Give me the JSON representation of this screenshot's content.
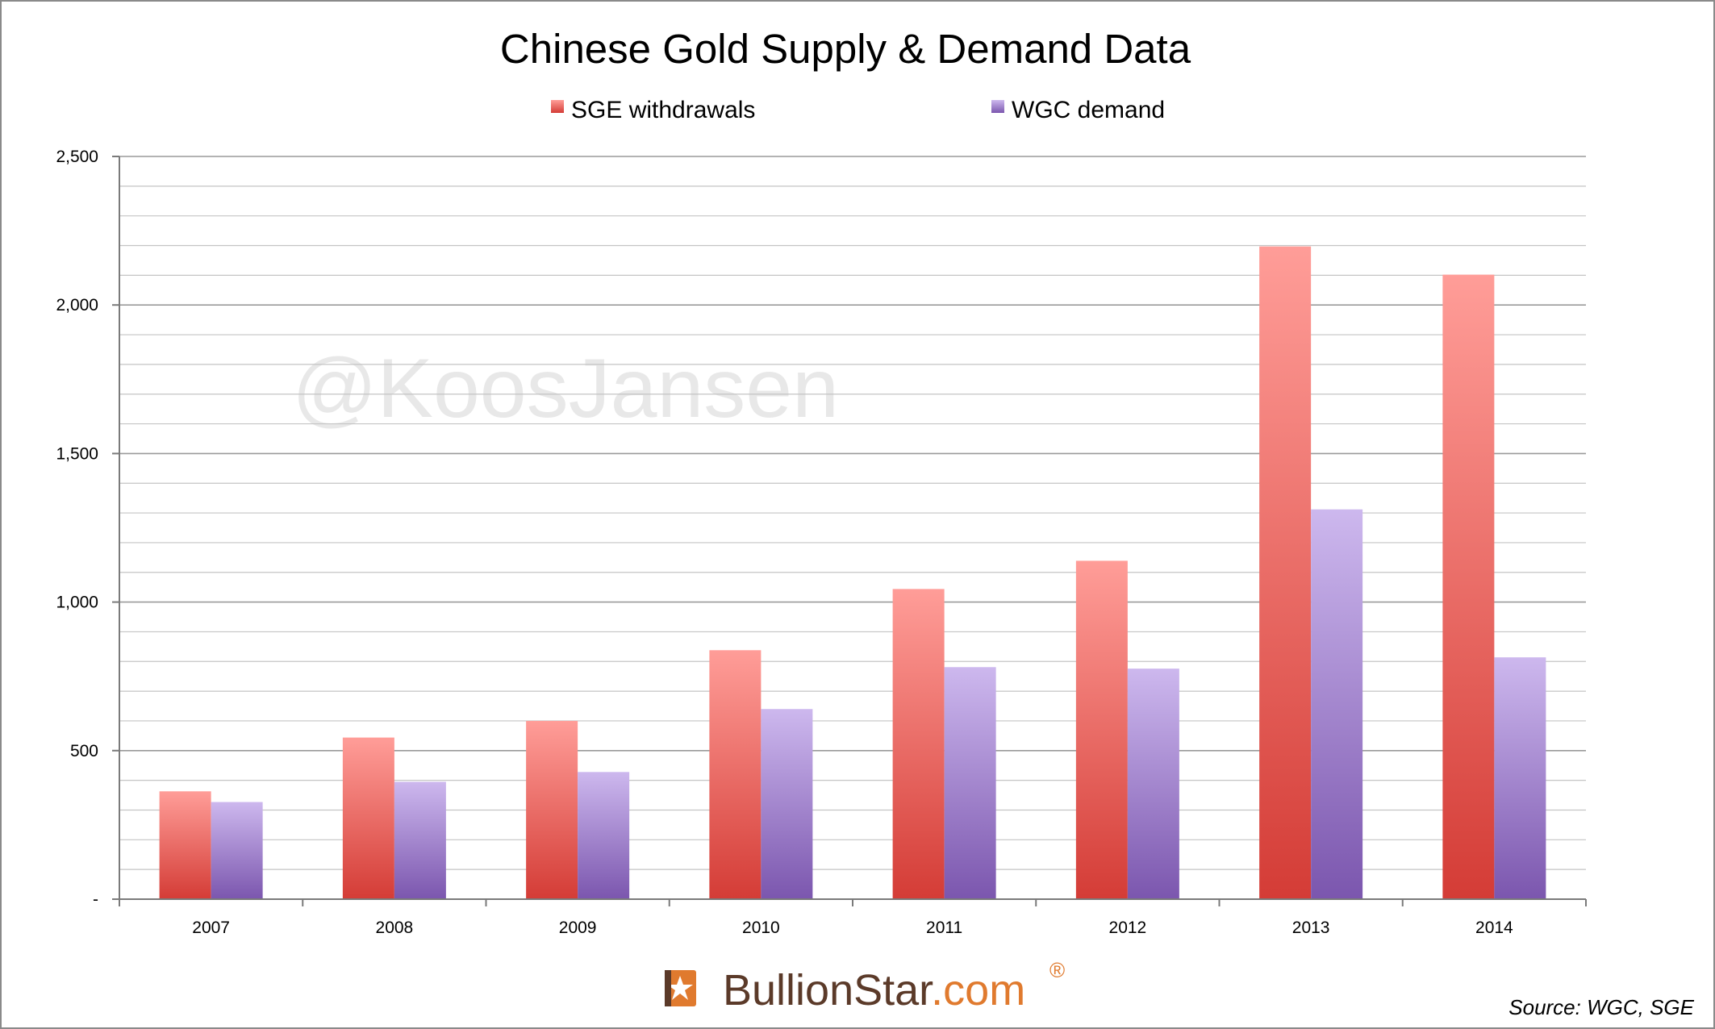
{
  "chart_data": {
    "type": "bar",
    "title": "Chinese Gold Supply & Demand Data",
    "categories": [
      "2007",
      "2008",
      "2009",
      "2010",
      "2011",
      "2012",
      "2013",
      "2014"
    ],
    "series": [
      {
        "name": "SGE withdrawals",
        "values": [
          363,
          544,
          600,
          838,
          1044,
          1139,
          2197,
          2102
        ],
        "color": "#e0483f"
      },
      {
        "name": "WGC demand",
        "values": [
          327,
          395,
          428,
          640,
          781,
          776,
          1312,
          814
        ],
        "color": "#8e6bb8"
      }
    ],
    "ylim": [
      0,
      2500
    ],
    "y_ticks": [
      {
        "value": 0,
        "label": "-"
      },
      {
        "value": 500,
        "label": "500"
      },
      {
        "value": 1000,
        "label": "1,000"
      },
      {
        "value": 1500,
        "label": "1,500"
      },
      {
        "value": 2000,
        "label": "2,000"
      },
      {
        "value": 2500,
        "label": "2,500"
      }
    ],
    "minor_gridline_step": 100,
    "grid": true,
    "legend_placement": "top-center",
    "xlabel": "",
    "ylabel": ""
  },
  "watermark": "@KoosJansen",
  "brand": {
    "name": "BullionStar",
    "suffix": ".com",
    "mark": "®",
    "name_color": "#5b3a29",
    "suffix_color": "#e07a2e"
  },
  "source": "Source: WGC, SGE"
}
